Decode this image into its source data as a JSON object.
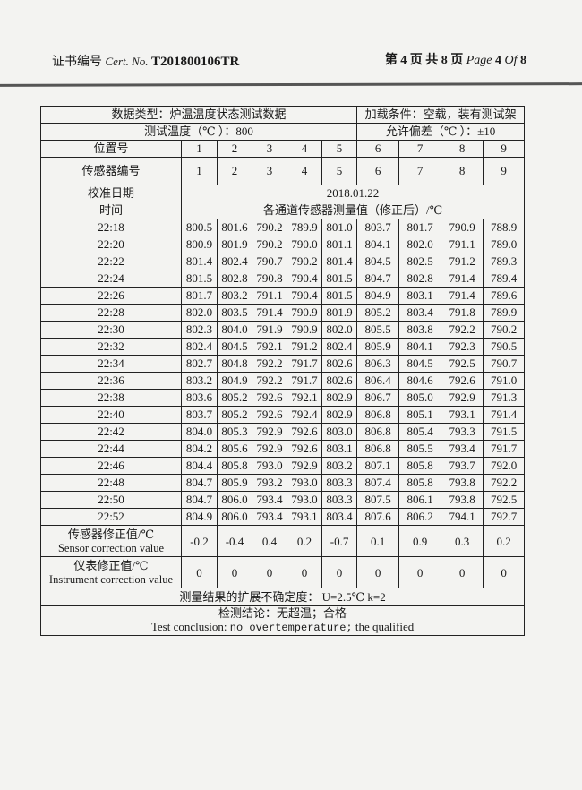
{
  "header": {
    "cert_label_cn": "证书编号",
    "cert_label_en": "Cert. No.",
    "cert_no": "T201800106TR",
    "page_cn_prefix": "第",
    "page_current": "4",
    "page_cn_mid": "页 共",
    "page_total": "8",
    "page_cn_suffix": "页",
    "page_en": "Page",
    "of_en": "Of"
  },
  "table": {
    "data_type": "数据类型：炉温温度状态测试数据",
    "load_condition": "加载条件：空载，装有测试架",
    "test_temp": "测试温度（℃ ）：800",
    "tolerance": "允许偏差（℃ ）：±10",
    "position_label": "位置号",
    "positions": [
      "1",
      "2",
      "3",
      "4",
      "5",
      "6",
      "7",
      "8",
      "9"
    ],
    "sensor_label": "传感器编号",
    "sensors": [
      "1",
      "2",
      "3",
      "4",
      "5",
      "6",
      "7",
      "8",
      "9"
    ],
    "calib_date_label": "校准日期",
    "calib_date": "2018.01.22",
    "time_label": "时间",
    "measure_label": "各通道传感器测量值（修正后）/℃",
    "rows": [
      {
        "time": "22:18",
        "values": [
          "800.5",
          "801.6",
          "790.2",
          "789.9",
          "801.0",
          "803.7",
          "801.7",
          "790.9",
          "788.9"
        ]
      },
      {
        "time": "22:20",
        "values": [
          "800.9",
          "801.9",
          "790.2",
          "790.0",
          "801.1",
          "804.1",
          "802.0",
          "791.1",
          "789.0"
        ]
      },
      {
        "time": "22:22",
        "values": [
          "801.4",
          "802.4",
          "790.7",
          "790.2",
          "801.4",
          "804.5",
          "802.5",
          "791.2",
          "789.3"
        ]
      },
      {
        "time": "22:24",
        "values": [
          "801.5",
          "802.8",
          "790.8",
          "790.4",
          "801.5",
          "804.7",
          "802.8",
          "791.4",
          "789.4"
        ]
      },
      {
        "time": "22:26",
        "values": [
          "801.7",
          "803.2",
          "791.1",
          "790.4",
          "801.5",
          "804.9",
          "803.1",
          "791.4",
          "789.6"
        ]
      },
      {
        "time": "22:28",
        "values": [
          "802.0",
          "803.5",
          "791.4",
          "790.9",
          "801.9",
          "805.2",
          "803.4",
          "791.8",
          "789.9"
        ]
      },
      {
        "time": "22:30",
        "values": [
          "802.3",
          "804.0",
          "791.9",
          "790.9",
          "802.0",
          "805.5",
          "803.8",
          "792.2",
          "790.2"
        ]
      },
      {
        "time": "22:32",
        "values": [
          "802.4",
          "804.5",
          "792.1",
          "791.2",
          "802.4",
          "805.9",
          "804.1",
          "792.3",
          "790.5"
        ]
      },
      {
        "time": "22:34",
        "values": [
          "802.7",
          "804.8",
          "792.2",
          "791.7",
          "802.6",
          "806.3",
          "804.5",
          "792.5",
          "790.7"
        ]
      },
      {
        "time": "22:36",
        "values": [
          "803.2",
          "804.9",
          "792.2",
          "791.7",
          "802.6",
          "806.4",
          "804.6",
          "792.6",
          "791.0"
        ]
      },
      {
        "time": "22:38",
        "values": [
          "803.6",
          "805.2",
          "792.6",
          "792.1",
          "802.9",
          "806.7",
          "805.0",
          "792.9",
          "791.3"
        ]
      },
      {
        "time": "22:40",
        "values": [
          "803.7",
          "805.2",
          "792.6",
          "792.4",
          "802.9",
          "806.8",
          "805.1",
          "793.1",
          "791.4"
        ]
      },
      {
        "time": "22:42",
        "values": [
          "804.0",
          "805.3",
          "792.9",
          "792.6",
          "803.0",
          "806.8",
          "805.4",
          "793.3",
          "791.5"
        ]
      },
      {
        "time": "22:44",
        "values": [
          "804.2",
          "805.6",
          "792.9",
          "792.6",
          "803.1",
          "806.8",
          "805.5",
          "793.4",
          "791.7"
        ]
      },
      {
        "time": "22:46",
        "values": [
          "804.4",
          "805.8",
          "793.0",
          "792.9",
          "803.2",
          "807.1",
          "805.8",
          "793.7",
          "792.0"
        ]
      },
      {
        "time": "22:48",
        "values": [
          "804.7",
          "805.9",
          "793.2",
          "793.0",
          "803.3",
          "807.4",
          "805.8",
          "793.8",
          "792.2"
        ]
      },
      {
        "time": "22:50",
        "values": [
          "804.7",
          "806.0",
          "793.4",
          "793.0",
          "803.3",
          "807.5",
          "806.1",
          "793.8",
          "792.5"
        ]
      },
      {
        "time": "22:52",
        "values": [
          "804.9",
          "806.0",
          "793.4",
          "793.1",
          "803.4",
          "807.6",
          "806.2",
          "794.1",
          "792.7"
        ]
      }
    ],
    "sensor_corr_cn": "传感器修正值/℃",
    "sensor_corr_en": "Sensor correction value",
    "sensor_corr": [
      "-0.2",
      "-0.4",
      "0.4",
      "0.2",
      "-0.7",
      "0.1",
      "0.9",
      "0.3",
      "0.2"
    ],
    "instr_corr_cn": "仪表修正值/℃",
    "instr_corr_en": "Instrument correction value",
    "instr_corr": [
      "0",
      "0",
      "0",
      "0",
      "0",
      "0",
      "0",
      "0",
      "0"
    ],
    "uncertainty": "测量结果的扩展不确定度：  U=2.5℃      k=2",
    "conclusion_cn": "检测结论：无超温；合格",
    "conclusion_en_1": "Test conclusion:",
    "conclusion_en_2": "no overtemperature;",
    "conclusion_en_3": "the qualified"
  }
}
